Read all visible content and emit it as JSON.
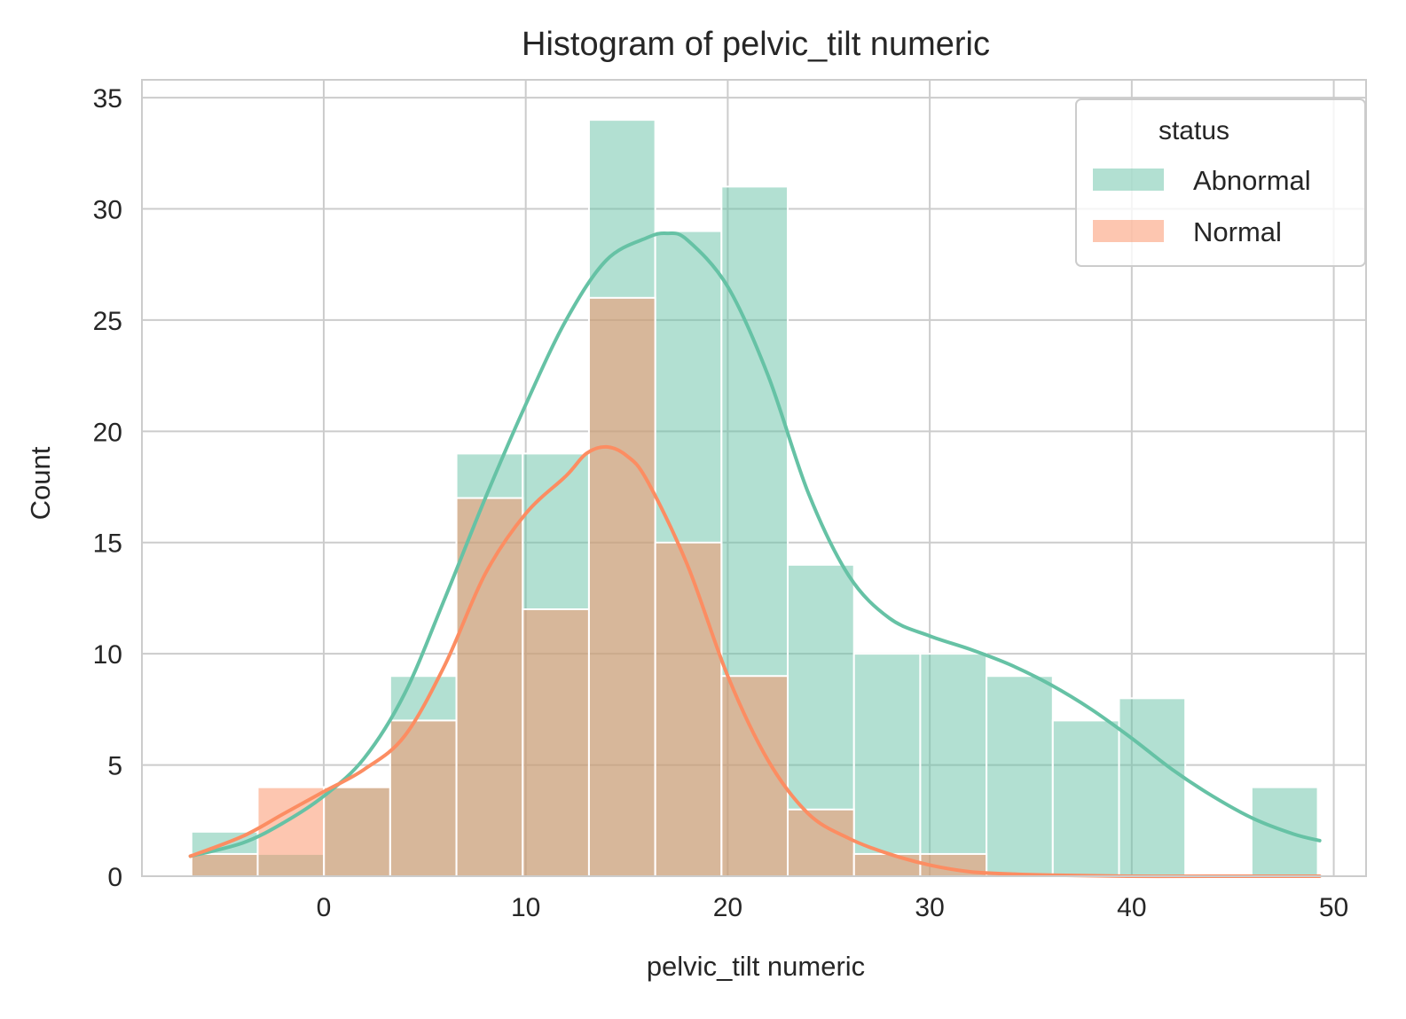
{
  "chart_data": {
    "type": "histogram",
    "title": "Histogram of pelvic_tilt numeric",
    "xlabel": "pelvic_tilt numeric",
    "ylabel": "Count",
    "xlim": [
      -9.0,
      51.6
    ],
    "ylim": [
      0,
      35.8
    ],
    "xticks": [
      0,
      10,
      20,
      30,
      40,
      50
    ],
    "yticks": [
      0,
      5,
      10,
      15,
      20,
      25,
      30,
      35
    ],
    "grid": true,
    "bin_edges": [
      -6.55,
      -3.27,
      0.01,
      3.29,
      6.57,
      9.85,
      13.13,
      16.41,
      19.69,
      22.97,
      26.25,
      29.53,
      32.81,
      36.09,
      39.37,
      42.65,
      45.93,
      49.21
    ],
    "series": [
      {
        "name": "Abnormal",
        "color": "#66c2a5",
        "counts": [
          2,
          1,
          4,
          9,
          19,
          19,
          34,
          29,
          31,
          14,
          10,
          10,
          9,
          7,
          8,
          0,
          4
        ],
        "kde": {
          "x": [
            -6.6,
            -4,
            -2,
            0,
            2,
            4,
            6,
            8,
            10,
            12,
            14,
            16,
            17,
            18,
            20,
            22,
            24,
            26,
            28,
            30,
            32,
            34,
            36,
            38,
            40,
            42,
            44,
            46,
            48,
            49.3
          ],
          "y": [
            0.9,
            1.5,
            2.4,
            3.6,
            5.3,
            8.2,
            12.5,
            17.0,
            21.2,
            25.0,
            27.7,
            28.7,
            28.9,
            28.6,
            26.5,
            22.5,
            17.2,
            13.5,
            11.6,
            10.8,
            10.2,
            9.5,
            8.6,
            7.5,
            6.2,
            4.8,
            3.6,
            2.6,
            1.9,
            1.6
          ]
        }
      },
      {
        "name": "Normal",
        "color": "#fc8d62",
        "counts": [
          1,
          4,
          4,
          7,
          17,
          12,
          26,
          15,
          9,
          3,
          1,
          1,
          0,
          0,
          0,
          0,
          0
        ],
        "kde": {
          "x": [
            -6.6,
            -4,
            -2,
            0,
            2,
            4,
            6,
            8,
            10,
            12,
            13,
            14,
            15,
            16,
            18,
            20,
            22,
            24,
            26,
            28,
            30,
            32,
            34,
            36,
            40,
            44,
            49.3
          ],
          "y": [
            0.9,
            1.8,
            2.8,
            3.8,
            4.8,
            6.3,
            9.5,
            13.6,
            16.3,
            18.0,
            19.0,
            19.3,
            18.9,
            17.8,
            14.0,
            9.0,
            5.2,
            2.8,
            1.7,
            1.0,
            0.5,
            0.2,
            0.1,
            0.05,
            0.0,
            0.0,
            0.0
          ]
        }
      }
    ],
    "legend": {
      "title": "status",
      "position": "top-right",
      "entries": [
        "Abnormal",
        "Normal"
      ]
    }
  }
}
